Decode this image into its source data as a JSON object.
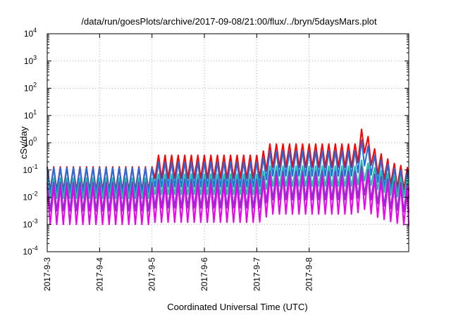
{
  "chart_data": {
    "type": "line",
    "title": "/data/run/goesPlots/archive/2017-09-08/21:00/flux/../bryn/5daysMars.plot",
    "xlabel": "Coordinated Universal Time (UTC)",
    "ylabel": "cSv/day",
    "yscale": "log",
    "ylim_exponents": [
      -4,
      4
    ],
    "y_ticks": [
      {
        "base": "10",
        "exp": "-4"
      },
      {
        "base": "10",
        "exp": "-3"
      },
      {
        "base": "10",
        "exp": "-2"
      },
      {
        "base": "10",
        "exp": "-1"
      },
      {
        "base": "10",
        "exp": "0"
      },
      {
        "base": "10",
        "exp": "1"
      },
      {
        "base": "10",
        "exp": "2"
      },
      {
        "base": "10",
        "exp": "3"
      },
      {
        "base": "10",
        "exp": "4"
      }
    ],
    "x_ticks": [
      "2017-9-3",
      "2017-9-4",
      "2017-9-5",
      "2017-9-6",
      "2017-9-7",
      "2017-9-8"
    ],
    "x_range_days": [
      0,
      6.9
    ],
    "grid": true,
    "legend": "none",
    "sawtooth_period_days": 0.125,
    "series": [
      {
        "color": "#ff0000",
        "peak_knots": [
          [
            0,
            0.13
          ],
          [
            2.0,
            0.13
          ],
          [
            2.05,
            0.35
          ],
          [
            4.05,
            0.35
          ],
          [
            4.25,
            0.9
          ],
          [
            5.9,
            0.9
          ],
          [
            6.02,
            4.0
          ],
          [
            6.25,
            0.6
          ],
          [
            6.6,
            0.18
          ],
          [
            6.9,
            0.12
          ]
        ],
        "trough_ratio": 0.14
      },
      {
        "color": "#1e6ee6",
        "peak_knots": [
          [
            0,
            0.12
          ],
          [
            2.0,
            0.12
          ],
          [
            2.05,
            0.2
          ],
          [
            4.05,
            0.2
          ],
          [
            4.25,
            0.5
          ],
          [
            5.9,
            0.5
          ],
          [
            6.02,
            1.5
          ],
          [
            6.25,
            0.35
          ],
          [
            6.6,
            0.12
          ],
          [
            6.9,
            0.08
          ]
        ],
        "trough_ratio": 0.12
      },
      {
        "color": "#20c0a0",
        "peak_knots": [
          [
            0,
            0.05
          ],
          [
            2.0,
            0.05
          ],
          [
            2.05,
            0.07
          ],
          [
            4.05,
            0.07
          ],
          [
            4.25,
            0.14
          ],
          [
            5.9,
            0.14
          ],
          [
            6.02,
            0.25
          ],
          [
            6.25,
            0.12
          ],
          [
            6.6,
            0.06
          ],
          [
            6.9,
            0.05
          ]
        ],
        "trough_ratio": 0.18
      },
      {
        "color": "#7a3ac8",
        "peak_knots": [
          [
            0,
            0.035
          ],
          [
            2.0,
            0.035
          ],
          [
            2.05,
            0.045
          ],
          [
            4.05,
            0.045
          ],
          [
            4.25,
            0.09
          ],
          [
            5.9,
            0.09
          ],
          [
            6.02,
            0.15
          ],
          [
            6.25,
            0.07
          ],
          [
            6.6,
            0.04
          ],
          [
            6.9,
            0.03
          ]
        ],
        "trough_ratio": 0.09
      },
      {
        "color": "#ee00ee",
        "peak_knots": [
          [
            0,
            0.025
          ],
          [
            2.0,
            0.025
          ],
          [
            2.05,
            0.03
          ],
          [
            4.05,
            0.03
          ],
          [
            4.25,
            0.06
          ],
          [
            5.9,
            0.06
          ],
          [
            6.02,
            0.1
          ],
          [
            6.25,
            0.05
          ],
          [
            6.6,
            0.03
          ],
          [
            6.9,
            0.022
          ]
        ],
        "trough_ratio": 0.04
      }
    ]
  }
}
